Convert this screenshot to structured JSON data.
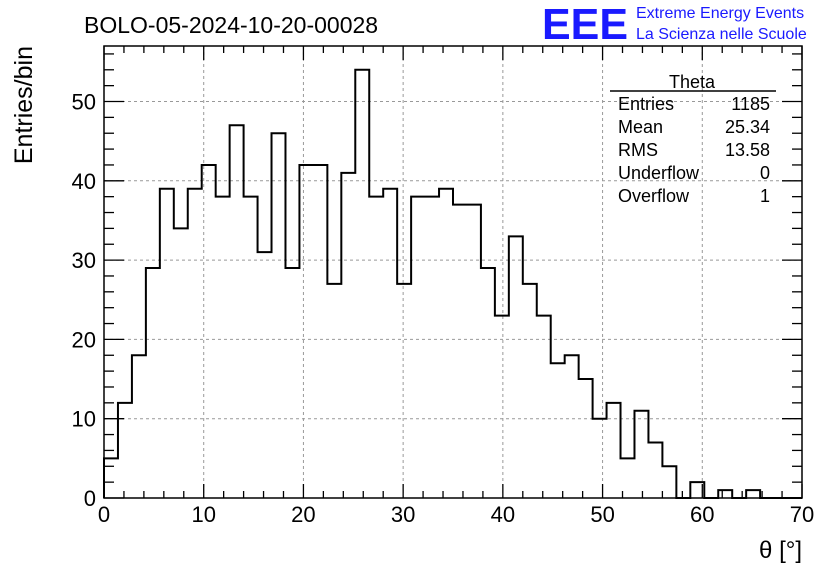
{
  "chart_data": {
    "type": "bar",
    "histogram": true,
    "title": "BOLO-05-2024-10-20-00028",
    "xlabel": "θ [°]",
    "ylabel": "Entries/bin",
    "xlim": [
      0,
      70
    ],
    "ylim": [
      0,
      57
    ],
    "grid": true,
    "bin_width": 1.4,
    "x_ticks": [
      "0",
      "10",
      "20",
      "30",
      "40",
      "50",
      "60",
      "70"
    ],
    "y_ticks": [
      "0",
      "10",
      "20",
      "30",
      "40",
      "50"
    ],
    "values": [
      5,
      12,
      18,
      29,
      39,
      34,
      39,
      42,
      38,
      47,
      38,
      31,
      46,
      29,
      42,
      42,
      27,
      41,
      54,
      38,
      39,
      27,
      38,
      38,
      39,
      37,
      37,
      29,
      23,
      33,
      27,
      23,
      17,
      18,
      15,
      10,
      12,
      5,
      11,
      7,
      4,
      0,
      2,
      0,
      1,
      0,
      1,
      0,
      0,
      0
    ],
    "stats": {
      "title": "Theta",
      "rows": [
        {
          "label": "Entries",
          "value": "1185"
        },
        {
          "label": "Mean",
          "value": "25.34"
        },
        {
          "label": "RMS",
          "value": "13.58"
        },
        {
          "label": "Underflow",
          "value": "0"
        },
        {
          "label": "Overflow",
          "value": "1"
        }
      ]
    }
  },
  "logo": {
    "text": "EEE",
    "line1": "Extreme Energy Events",
    "line2": "La Scienza nelle Scuole",
    "color": "#1a1aff"
  }
}
